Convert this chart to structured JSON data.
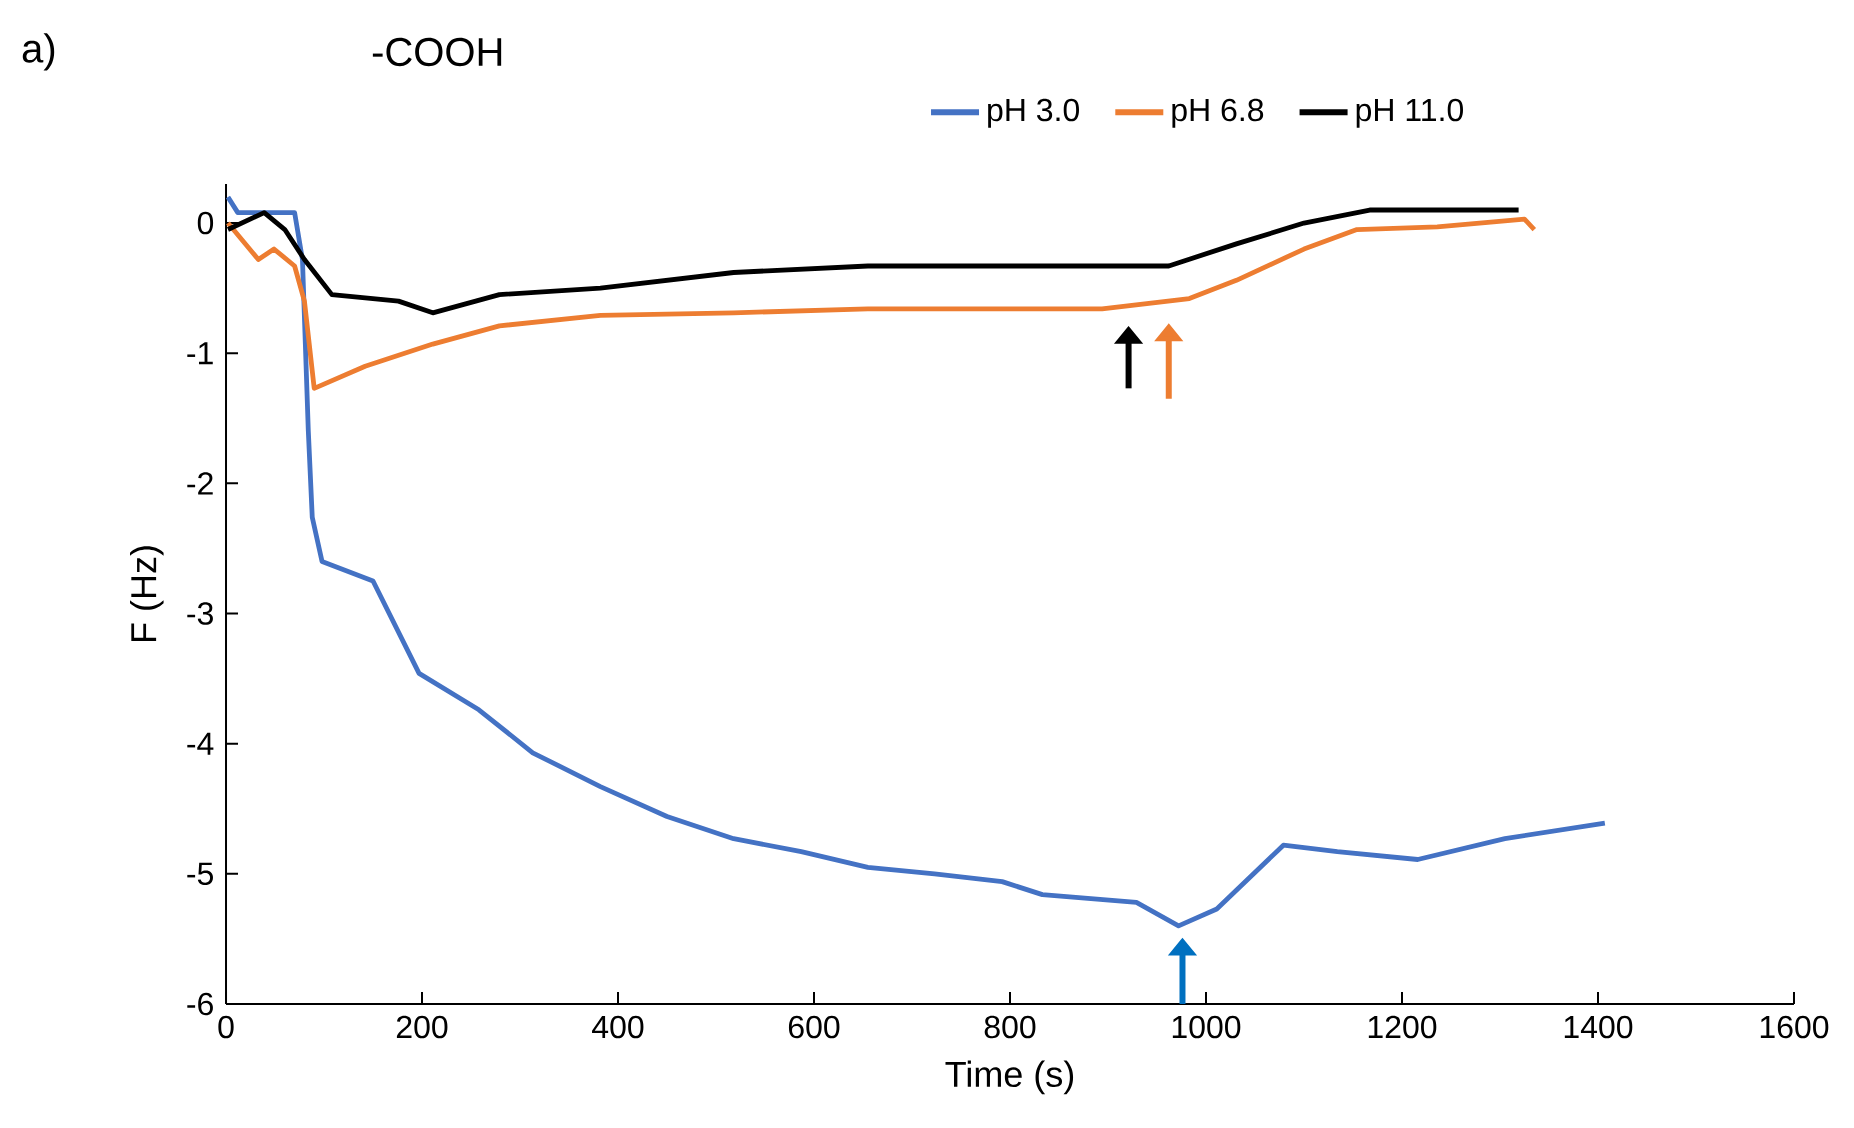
{
  "chart_data": {
    "type": "line",
    "title": "-COOH",
    "xlabel": "Time (s)",
    "ylabel": "F (Hz)",
    "annotations": [
      "a)"
    ],
    "legend": "top",
    "xlim": [
      0,
      1600
    ],
    "xticks": [
      0,
      200,
      400,
      600,
      800,
      1000,
      1200,
      1400,
      1600
    ],
    "ylim": [
      -6,
      0.3
    ],
    "yticks": [
      -6,
      -5,
      -4,
      -3,
      -2,
      -1,
      0
    ],
    "series": [
      {
        "name": "pH 3.0",
        "color": "#4472c4",
        "x": [
          2,
          12,
          40,
          70,
          78,
          84,
          88,
          98,
          150,
          197,
          258,
          313,
          382,
          450,
          518,
          587,
          655,
          723,
          792,
          833,
          929,
          972,
          1011,
          1079,
          1134,
          1216,
          1305,
          1407
        ],
        "values": [
          0.2,
          0.08,
          0.08,
          0.08,
          -0.28,
          -1.6,
          -2.26,
          -2.6,
          -2.75,
          -3.46,
          -3.74,
          -4.07,
          -4.33,
          -4.56,
          -4.73,
          -4.83,
          -4.95,
          -5.0,
          -5.06,
          -5.16,
          -5.22,
          -5.4,
          -5.27,
          -4.78,
          -4.83,
          -4.89,
          -4.73,
          -4.61
        ]
      },
      {
        "name": "pH 6.8",
        "color": "#ed7d31",
        "x": [
          2,
          33,
          49,
          70,
          80,
          90,
          142,
          211,
          279,
          382,
          518,
          655,
          826,
          894,
          983,
          1031,
          1100,
          1154,
          1236,
          1325,
          1335
        ],
        "values": [
          0,
          -0.28,
          -0.2,
          -0.33,
          -0.6,
          -1.27,
          -1.1,
          -0.93,
          -0.79,
          -0.71,
          -0.69,
          -0.66,
          -0.66,
          -0.66,
          -0.58,
          -0.44,
          -0.2,
          -0.05,
          -0.03,
          0.03,
          -0.05
        ]
      },
      {
        "name": "pH 11.0",
        "color": "#000000",
        "x": [
          2,
          39,
          60,
          80,
          108,
          176,
          211,
          279,
          382,
          518,
          655,
          826,
          894,
          962,
          1031,
          1100,
          1167,
          1270,
          1319
        ],
        "values": [
          -0.05,
          0.08,
          -0.05,
          -0.28,
          -0.55,
          -0.6,
          -0.69,
          -0.55,
          -0.5,
          -0.38,
          -0.33,
          -0.33,
          -0.33,
          -0.33,
          -0.16,
          0,
          0.1,
          0.1,
          0.1
        ]
      }
    ]
  }
}
